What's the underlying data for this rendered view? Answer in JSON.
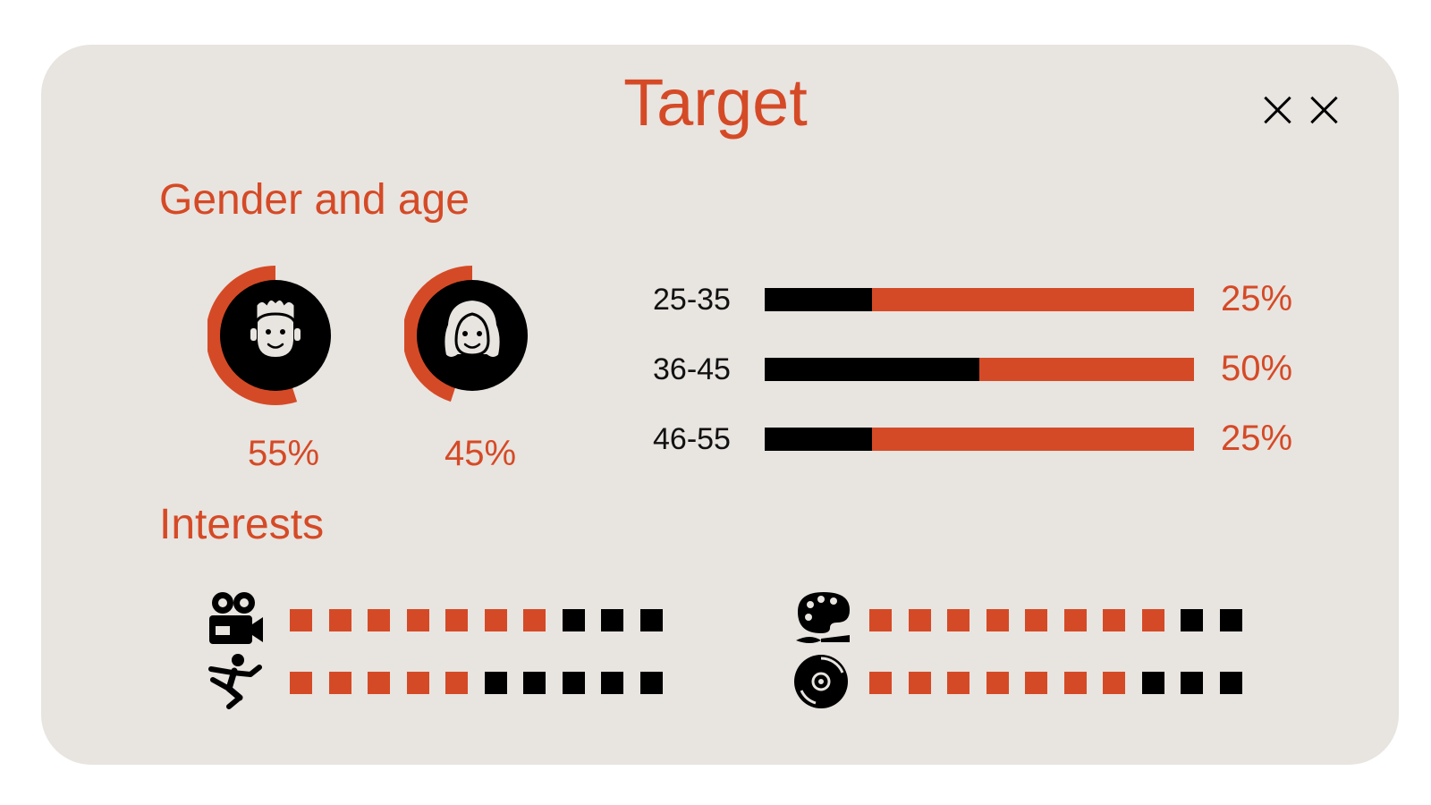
{
  "title": "Target",
  "header_icons": [
    "close-icon",
    "close-icon"
  ],
  "gender_age": {
    "heading": "Gender and age",
    "genders": [
      {
        "icon": "male-face-icon",
        "percent_label": "55%",
        "share": 0.55
      },
      {
        "icon": "female-face-icon",
        "percent_label": "45%",
        "share": 0.45
      }
    ],
    "age_groups": [
      {
        "label": "25-35",
        "percent_label": "25%",
        "value": 0.25
      },
      {
        "label": "36-45",
        "percent_label": "50%",
        "value": 0.5
      },
      {
        "label": "46-55",
        "percent_label": "25%",
        "value": 0.25
      }
    ]
  },
  "interests": {
    "heading": "Interests",
    "items": [
      {
        "icon": "movie-camera-icon",
        "score": 7,
        "max": 10
      },
      {
        "icon": "palette-icon",
        "score": 8,
        "max": 10
      },
      {
        "icon": "martial-arts-icon",
        "score": 5,
        "max": 10
      },
      {
        "icon": "music-disc-icon",
        "score": 7,
        "max": 10
      }
    ]
  },
  "colors": {
    "accent": "#d54a26",
    "dark": "#000000",
    "background": "#e8e4e0"
  }
}
